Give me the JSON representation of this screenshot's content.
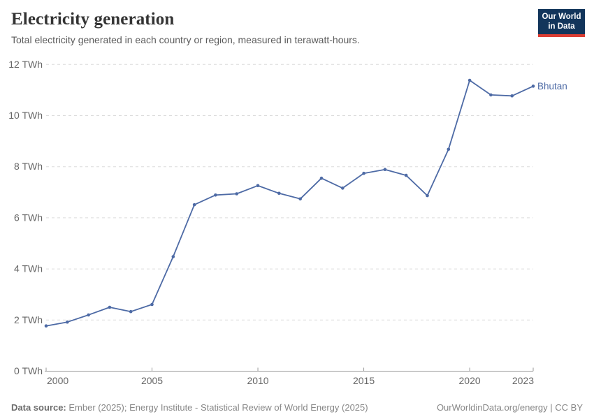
{
  "header": {
    "title": "Electricity generation",
    "subtitle": "Total electricity generated in each country or region, measured in terawatt-hours."
  },
  "logo": {
    "line1": "Our World",
    "line2": "in Data",
    "bg_color": "#12355B",
    "accent_color": "#DC3D33"
  },
  "chart_data": {
    "type": "line",
    "title": "Electricity generation",
    "subtitle": "Total electricity generated in each country or region, measured in terawatt-hours.",
    "unit": "TWh",
    "x": [
      2000,
      2001,
      2002,
      2003,
      2004,
      2005,
      2006,
      2007,
      2008,
      2009,
      2010,
      2011,
      2012,
      2013,
      2014,
      2015,
      2016,
      2017,
      2018,
      2019,
      2020,
      2021,
      2022,
      2023
    ],
    "series": [
      {
        "name": "Bhutan",
        "color": "#4D6AA5",
        "values": [
          1.77,
          1.92,
          2.2,
          2.5,
          2.33,
          2.61,
          4.48,
          6.51,
          6.89,
          6.94,
          7.26,
          6.96,
          6.74,
          7.55,
          7.16,
          7.74,
          7.89,
          7.66,
          6.87,
          8.68,
          11.38,
          10.81,
          10.77,
          11.15
        ]
      }
    ],
    "xlim": [
      2000,
      2023
    ],
    "ylim": [
      0,
      12
    ],
    "y_ticks": {
      "values": [
        0,
        2,
        4,
        6,
        8,
        10,
        12
      ],
      "labels": [
        "0 TWh",
        "2 TWh",
        "4 TWh",
        "6 TWh",
        "8 TWh",
        "10 TWh",
        "12 TWh"
      ]
    },
    "x_ticks": {
      "values": [
        2000,
        2005,
        2010,
        2015,
        2020,
        2023
      ],
      "labels": [
        "2000",
        "2005",
        "2010",
        "2015",
        "2020",
        "2023"
      ]
    },
    "grid": "horizontal-dashed",
    "grid_color": "#dcdcdc",
    "axis_color": "#999999",
    "tick_label_color": "#666666",
    "legend_position": "line-end-label"
  },
  "footer": {
    "source_label": "Data source:",
    "source_text": "Ember (2025); Energy Institute - Statistical Review of World Energy (2025)",
    "attribution": "OurWorldinData.org/energy | CC BY"
  }
}
